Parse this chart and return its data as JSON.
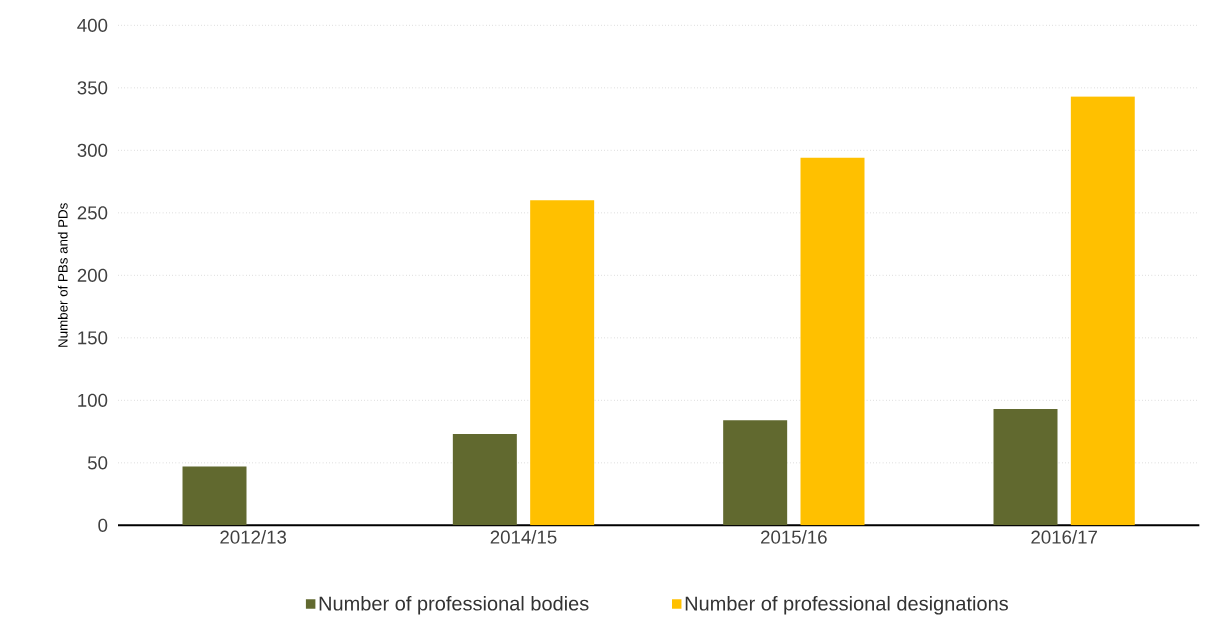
{
  "chart_data": {
    "type": "bar",
    "ylabel": "Number of PBs and PDs",
    "categories": [
      "2012/13",
      "2014/15",
      "2015/16",
      "2016/17"
    ],
    "series": [
      {
        "name": "Number of professional bodies",
        "color": "#61692f",
        "values": [
          47,
          73,
          84,
          93
        ]
      },
      {
        "name": "Number of professional designations",
        "color": "#ffc000",
        "values": [
          null,
          260,
          294,
          343
        ]
      }
    ],
    "ylim": [
      0,
      400
    ],
    "yticks": [
      0,
      50,
      100,
      150,
      200,
      250,
      300,
      350,
      400
    ],
    "grid": "y",
    "legend": "bottom"
  }
}
